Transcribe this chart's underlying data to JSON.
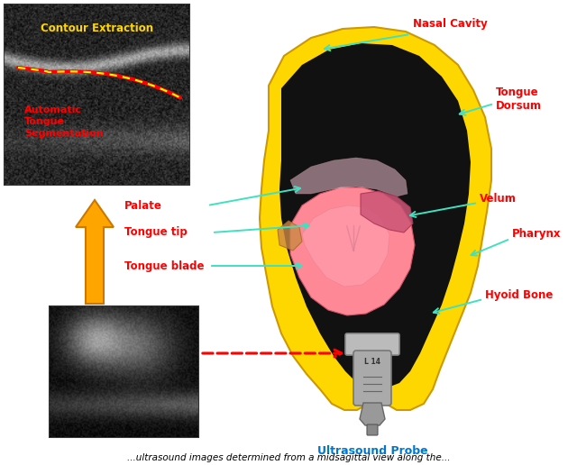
{
  "background_color": "#ffffff",
  "fig_width": 6.4,
  "fig_height": 5.16,
  "labels": {
    "contour_extraction": "Contour Extraction",
    "auto_tongue_seg": "Automatic\nTongue\nSegmentation",
    "nasal_cavity": "Nasal Cavity",
    "tongue_dorsum": "Tongue\nDorsum",
    "velum": "Velum",
    "pharynx": "Pharynx",
    "palate": "Palate",
    "tongue_tip": "Tongue tip",
    "tongue_blade": "Tongue blade",
    "hyoid_bone": "Hyoid Bone",
    "ultrasound_probe": "Ultrasound Probe"
  },
  "yellow": "#FFD700",
  "red": "#ff0000",
  "cyan": "#40E0C0",
  "blue": "#0077cc",
  "orange_arrow": "#FFA500",
  "probe_gray": "#aaaaaa",
  "skull_yellow": "#FFD700",
  "skull_edge": "#cc9900",
  "dark_interior": "#111111",
  "tongue_pink": "#FF8896",
  "tongue_pink2": "#FFaabb",
  "velum_pink": "#cc6677"
}
